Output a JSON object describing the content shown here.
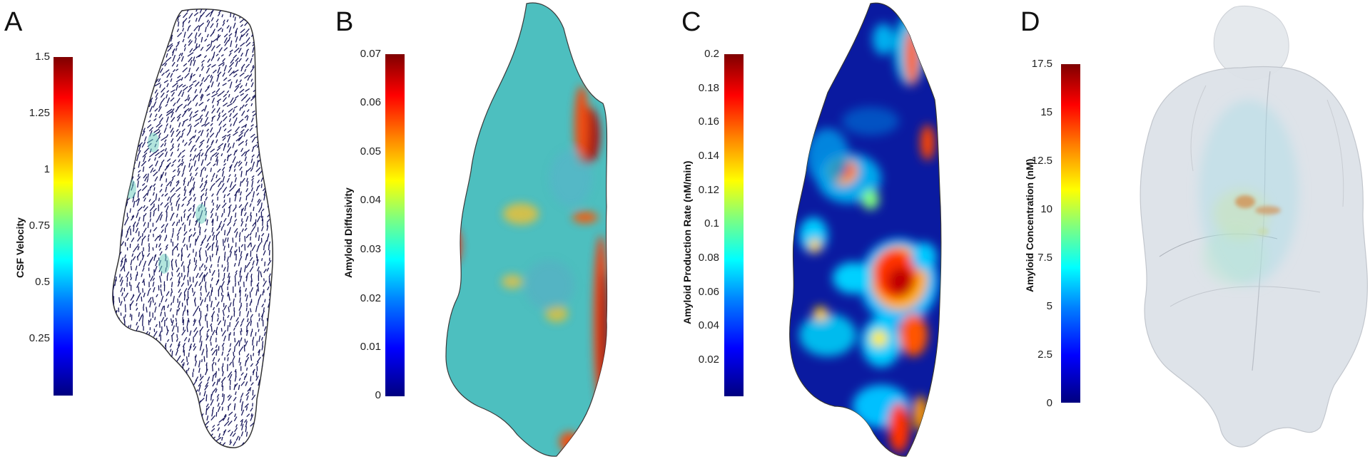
{
  "panels": [
    {
      "letter": "A",
      "colorbar_title": "CSF Velocity",
      "ticks": [
        "1.5",
        "1.25",
        "1",
        "0.75",
        "0.5",
        "0.25"
      ]
    },
    {
      "letter": "B",
      "colorbar_title": "Amyloid Diffusivity",
      "ticks": [
        "0.07",
        "0.06",
        "0.05",
        "0.04",
        "0.03",
        "0.02",
        "0.01",
        "0"
      ]
    },
    {
      "letter": "C",
      "colorbar_title": "Amyloid Production Rate (nM/min)",
      "ticks": [
        "0.2",
        "0.18",
        "0.16",
        "0.14",
        "0.12",
        "0.1",
        "0.08",
        "0.06",
        "0.04",
        "0.02"
      ]
    },
    {
      "letter": "D",
      "colorbar_title": "Amyloid Concentration (nM)",
      "ticks": [
        "17.5",
        "15",
        "12.5",
        "10",
        "7.5",
        "5",
        "2.5",
        "0"
      ]
    }
  ],
  "colors": {
    "velocity_arrows": "#1a1a5e",
    "diffusivity_background": "#4dbfbf",
    "production_background": "#0a1aa0",
    "glass_brain": "#dfe4ea"
  }
}
